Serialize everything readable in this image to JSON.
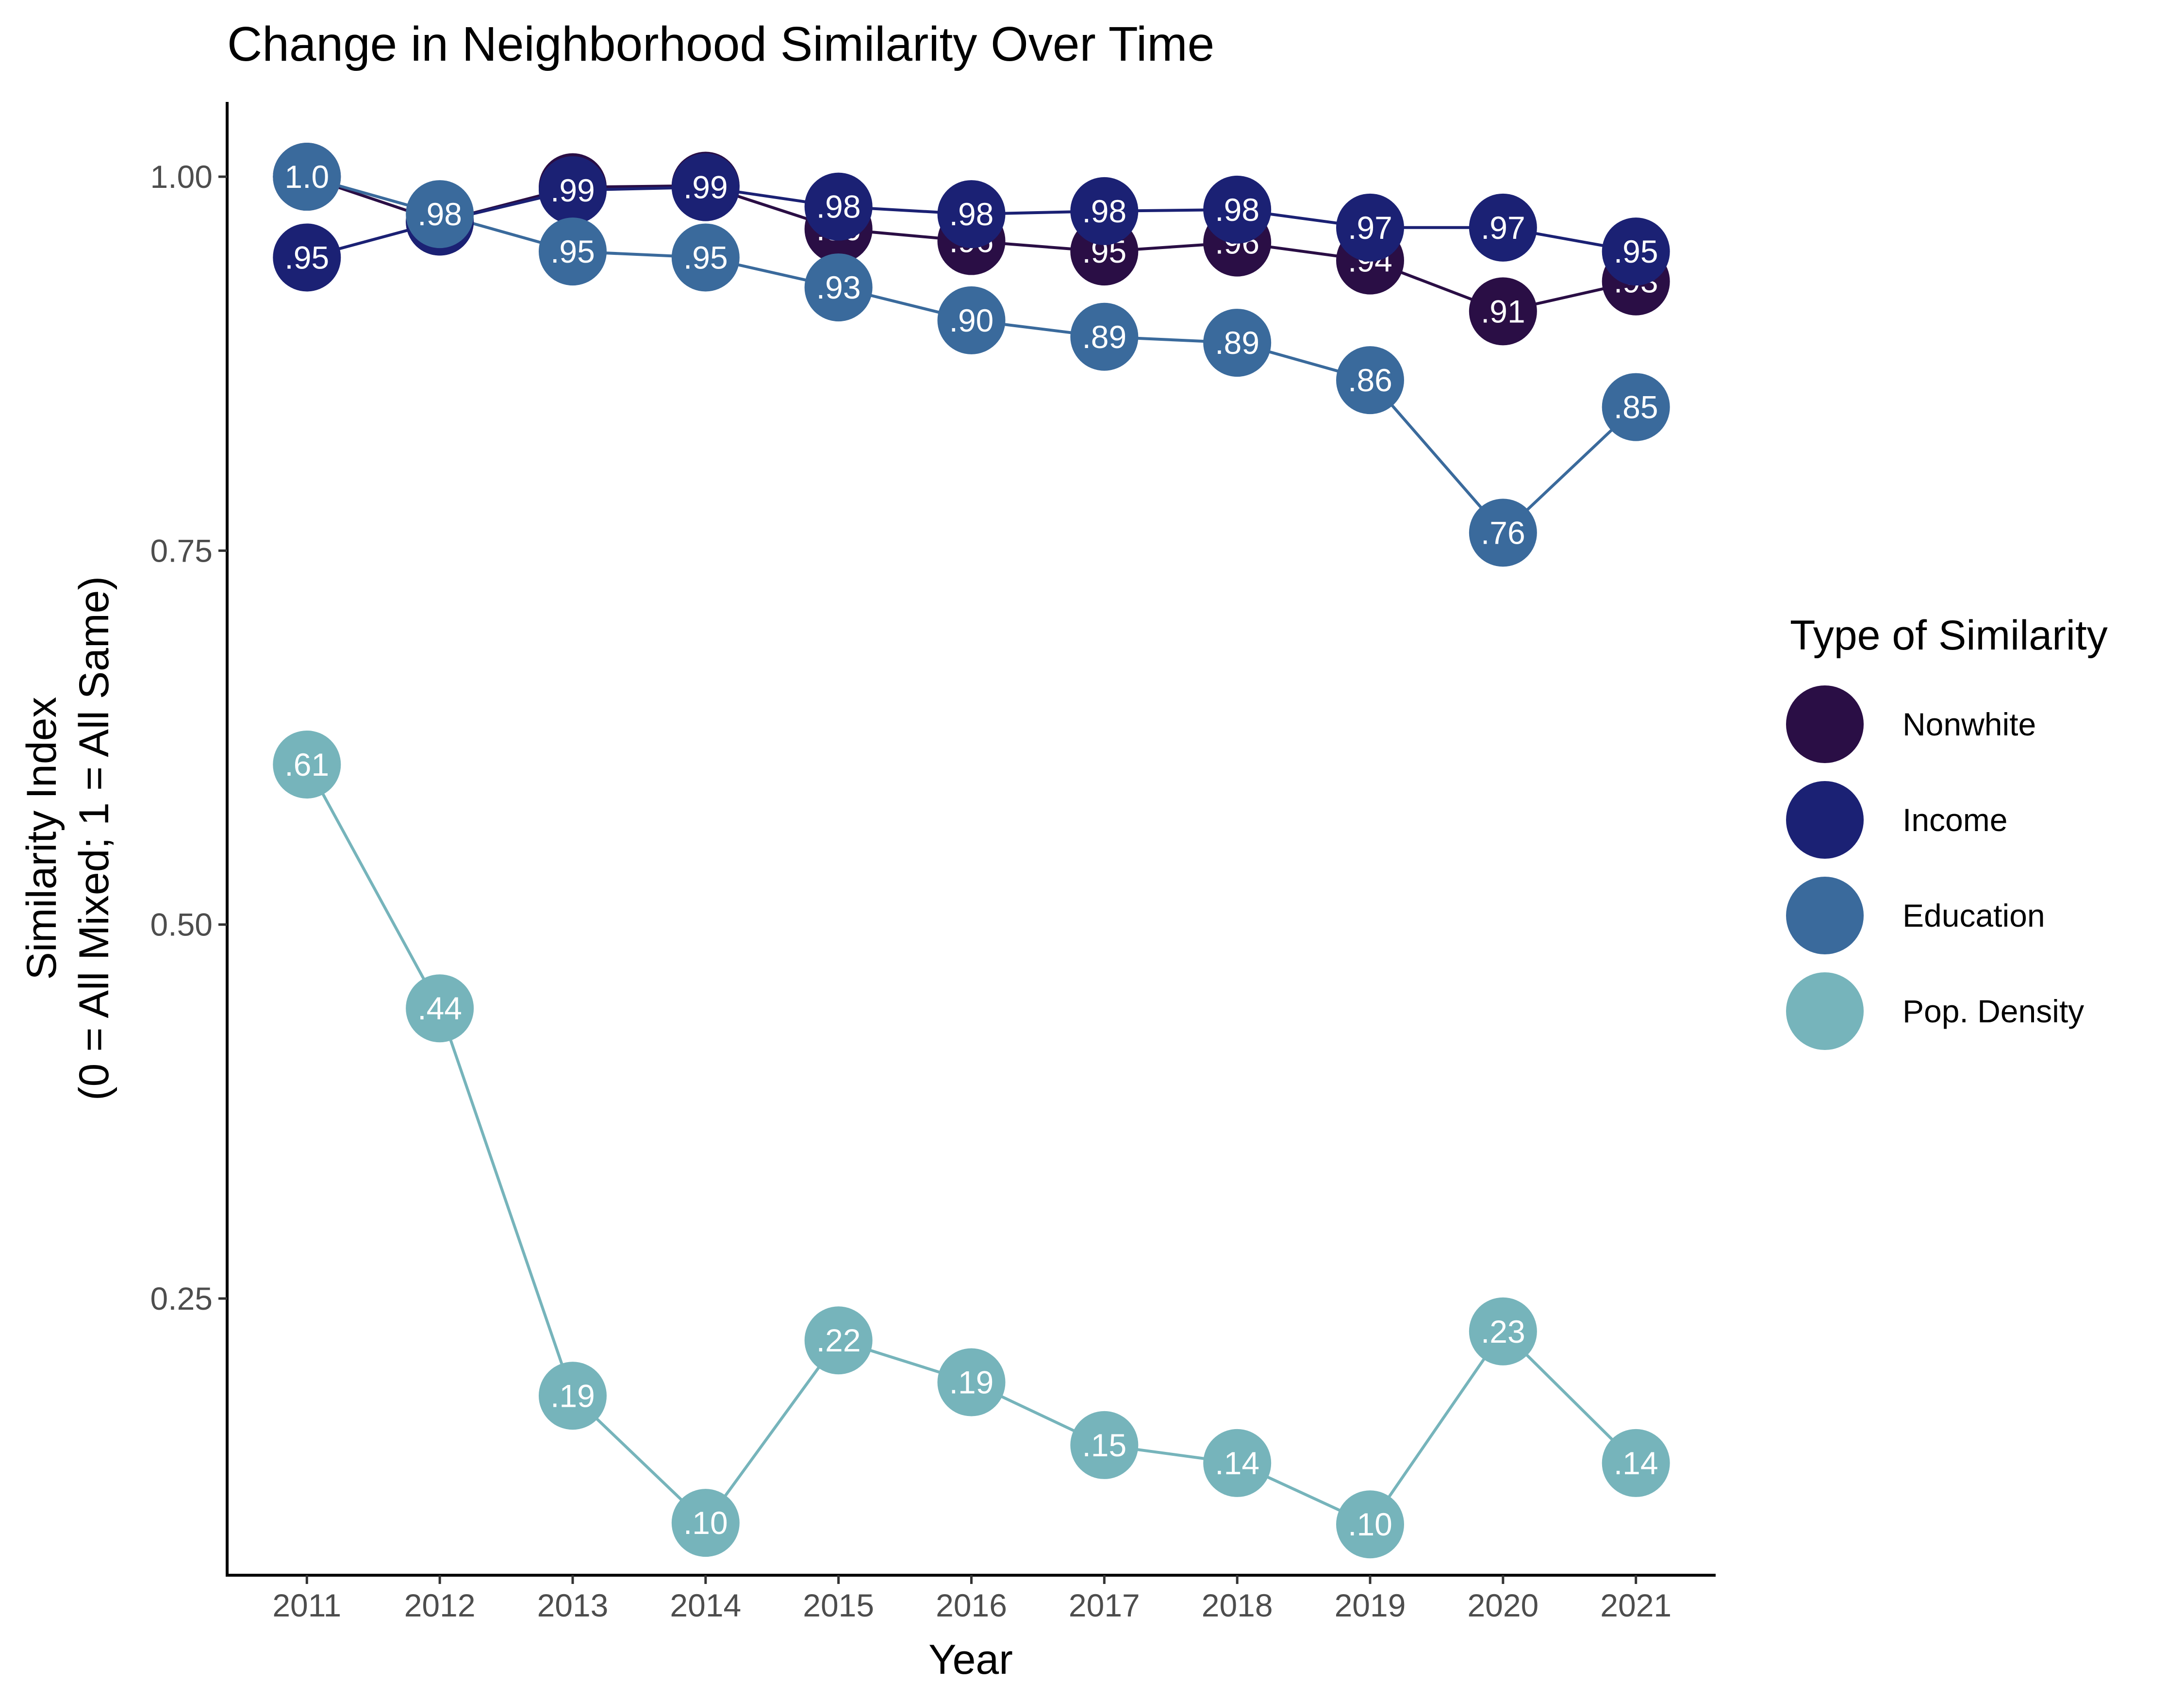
{
  "chart_data": {
    "type": "line",
    "title": "Change in Neighborhood Similarity Over Time",
    "xlabel": "Year",
    "ylabel_lines": [
      "Similarity Index",
      "(0 = All Mixed; 1 = All Same)"
    ],
    "x": [
      2011,
      2012,
      2013,
      2014,
      2015,
      2016,
      2017,
      2018,
      2019,
      2020,
      2021
    ],
    "x_ticks": [
      "2011",
      "2012",
      "2013",
      "2014",
      "2015",
      "2016",
      "2017",
      "2018",
      "2019",
      "2020",
      "2021"
    ],
    "y_ticks": [
      {
        "value": 0.25,
        "label": "0.25"
      },
      {
        "value": 0.5,
        "label": "0.50"
      },
      {
        "value": 0.75,
        "label": "0.75"
      },
      {
        "value": 1.0,
        "label": "1.00"
      }
    ],
    "ylim": [
      0.065,
      1.05
    ],
    "grid": false,
    "legend": {
      "title": "Type of Similarity",
      "position": "right"
    },
    "series": [
      {
        "name": "Nonwhite",
        "color": "#2a0e45",
        "values": [
          1.0,
          0.97,
          0.993,
          0.994,
          0.965,
          0.957,
          0.95,
          0.956,
          0.944,
          0.91,
          0.93
        ],
        "labels": [
          "1.0",
          ".97",
          ".99",
          ".99",
          ".96",
          ".96",
          ".95",
          ".96",
          ".94",
          ".91",
          ".93"
        ]
      },
      {
        "name": "Income",
        "color": "#1b2174",
        "values": [
          0.946,
          0.97,
          0.991,
          0.993,
          0.98,
          0.975,
          0.977,
          0.978,
          0.966,
          0.966,
          0.95
        ],
        "labels": [
          ".95",
          ".97",
          ".99",
          ".99",
          ".98",
          ".98",
          ".98",
          ".98",
          ".97",
          ".97",
          ".95"
        ]
      },
      {
        "name": "Education",
        "color": "#3a6a9c",
        "values": [
          1.0,
          0.975,
          0.95,
          0.946,
          0.926,
          0.904,
          0.893,
          0.889,
          0.864,
          0.762,
          0.846
        ],
        "labels": [
          "1.0",
          ".98",
          ".95",
          ".95",
          ".93",
          ".90",
          ".89",
          ".89",
          ".86",
          ".76",
          ".85"
        ]
      },
      {
        "name": "Pop. Density",
        "color": "#76b4bb",
        "values": [
          0.607,
          0.444,
          0.185,
          0.1,
          0.222,
          0.194,
          0.152,
          0.14,
          0.099,
          0.228,
          0.14
        ],
        "labels": [
          ".61",
          ".44",
          ".19",
          ".10",
          ".22",
          ".19",
          ".15",
          ".14",
          ".10",
          ".23",
          ".14"
        ]
      }
    ]
  }
}
